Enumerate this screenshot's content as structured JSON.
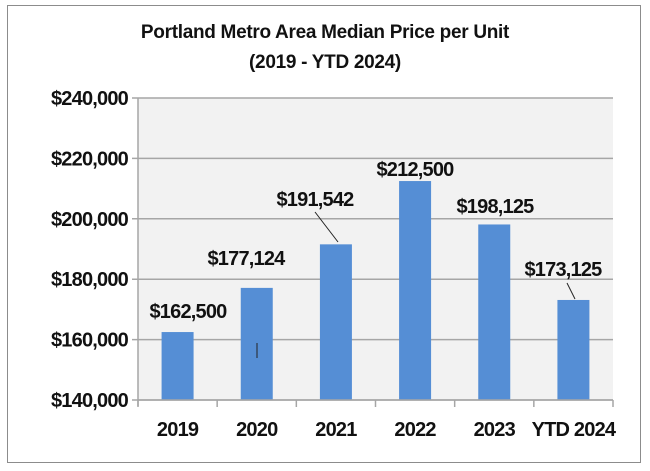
{
  "chart_data": {
    "type": "bar",
    "title": "Portland Metro Area Median Price per Unit",
    "subtitle": "(2019 - YTD 2024)",
    "categories": [
      "2019",
      "2020",
      "2021",
      "2022",
      "2023",
      "YTD 2024"
    ],
    "values": [
      162500,
      177124,
      191542,
      212500,
      198125,
      173125
    ],
    "data_labels": [
      "$162,500",
      "$177,124",
      "$191,542",
      "$212,500",
      "$198,125",
      "$173,125"
    ],
    "ylim": [
      140000,
      240000
    ],
    "yticks": [
      140000,
      160000,
      180000,
      200000,
      220000,
      240000
    ],
    "ytick_labels": [
      "$140,000",
      "$160,000",
      "$180,000",
      "$200,000",
      "$220,000",
      "$240,000"
    ],
    "xlabel": "",
    "ylabel": "",
    "grid": true,
    "legend": "none",
    "bar_color": "#558ed5",
    "plot_background": "#f2f2f2"
  }
}
